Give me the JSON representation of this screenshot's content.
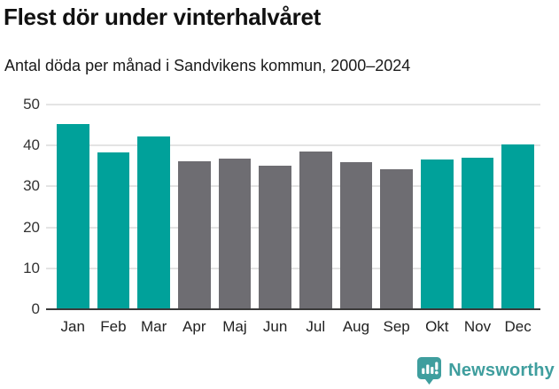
{
  "title": "Flest dör under vinterhalvåret",
  "subtitle": "Antal döda per månad i Sandvikens kommun, 2000–2024",
  "chart_data": {
    "type": "bar",
    "title": "Flest dör under vinterhalvåret",
    "subtitle": "Antal döda per månad i Sandvikens kommun, 2000–2024",
    "categories": [
      "Jan",
      "Feb",
      "Mar",
      "Apr",
      "Maj",
      "Jun",
      "Jul",
      "Aug",
      "Sep",
      "Okt",
      "Nov",
      "Dec"
    ],
    "values": [
      45.2,
      38.4,
      42.3,
      36.1,
      36.9,
      35.1,
      38.5,
      36.0,
      34.3,
      36.6,
      37.1,
      40.3
    ],
    "bar_color_keys": [
      "teal",
      "teal",
      "teal",
      "gray",
      "gray",
      "gray",
      "gray",
      "gray",
      "gray",
      "teal",
      "teal",
      "teal"
    ],
    "colors": {
      "teal": "#00a19a",
      "gray": "#6e6d72"
    },
    "xlabel": "",
    "ylabel": "",
    "ylim": [
      0,
      50
    ],
    "yticks": [
      0,
      10,
      20,
      30,
      40,
      50
    ],
    "grid": true,
    "legend": "none",
    "gridline_color": "#e4e4e4",
    "axis_line_color": "#3a3a3a"
  },
  "footer": {
    "brand": "Newsworthy",
    "logo_icon": "bar-chart-speech-bubble-icon",
    "brand_color": "#3f9e9e"
  }
}
